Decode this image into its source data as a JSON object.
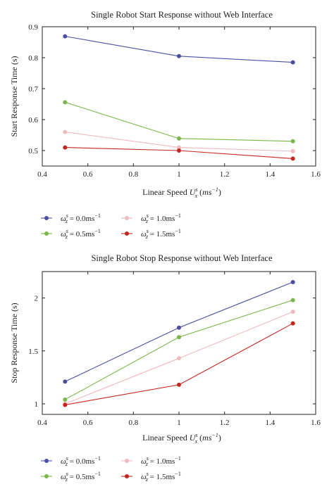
{
  "legend_labels": [
    {
      "sym": "ω",
      "sub": "z",
      "sup": "s",
      "text": " = 0.0ms",
      "exp": "−1"
    },
    {
      "sym": "ω",
      "sub": "z",
      "sup": "s",
      "text": " = 0.5ms",
      "exp": "−1"
    },
    {
      "sym": "ω",
      "sub": "z",
      "sup": "s",
      "text": " = 1.0ms",
      "exp": "−1"
    },
    {
      "sym": "ω",
      "sub": "z",
      "sup": "s",
      "text": " = 1.5ms",
      "exp": "−1"
    }
  ],
  "chart_data": [
    {
      "type": "line",
      "title": "Single Robot Start Response without Web Interface",
      "ylabel": "Start Response Time (s)",
      "xlabel": {
        "prefix": "Linear Speed ",
        "sym": "U",
        "sub": "x",
        "sup": "s",
        "unit": "ms",
        "unit_exp": "−1"
      },
      "xlim": [
        0.4,
        1.6
      ],
      "ylim": [
        0.45,
        0.9
      ],
      "xticks": [
        "0.4",
        "0.6",
        "0.8",
        "1",
        "1.2",
        "1.4",
        "1.6"
      ],
      "yticks": [
        "0.5",
        "0.6",
        "0.7",
        "0.8",
        "0.9"
      ],
      "x": [
        0.5,
        1.0,
        1.5
      ],
      "series": [
        {
          "color": "#4a4fa3",
          "values": [
            0.869,
            0.805,
            0.785
          ]
        },
        {
          "color": "#7ab648",
          "values": [
            0.656,
            0.539,
            0.53
          ]
        },
        {
          "color": "#f0b8bf",
          "values": [
            0.56,
            0.51,
            0.498
          ]
        },
        {
          "color": "#c4261d",
          "values": [
            0.51,
            0.5,
            0.474
          ]
        }
      ],
      "legend_position": "below"
    },
    {
      "type": "line",
      "title": "Single Robot Stop Response without Web Interface",
      "ylabel": "Stop Response Time (s)",
      "xlabel": {
        "prefix": "Linear Speed ",
        "sym": "U",
        "sub": "x",
        "sup": "s",
        "unit": "ms",
        "unit_exp": "−1"
      },
      "xlim": [
        0.4,
        1.6
      ],
      "ylim": [
        0.9,
        2.25
      ],
      "xticks": [
        "0.4",
        "0.6",
        "0.8",
        "1",
        "1.2",
        "1.4",
        "1.6"
      ],
      "yticks": [
        "1",
        "1.5",
        "2"
      ],
      "x": [
        0.5,
        1.0,
        1.5
      ],
      "series": [
        {
          "color": "#4a4fa3",
          "values": [
            1.21,
            1.72,
            2.15
          ]
        },
        {
          "color": "#7ab648",
          "values": [
            1.04,
            1.63,
            1.98
          ]
        },
        {
          "color": "#f0b8bf",
          "values": [
            1.0,
            1.43,
            1.87
          ]
        },
        {
          "color": "#c4261d",
          "values": [
            0.99,
            1.18,
            1.76
          ]
        }
      ],
      "legend_position": "below"
    }
  ]
}
